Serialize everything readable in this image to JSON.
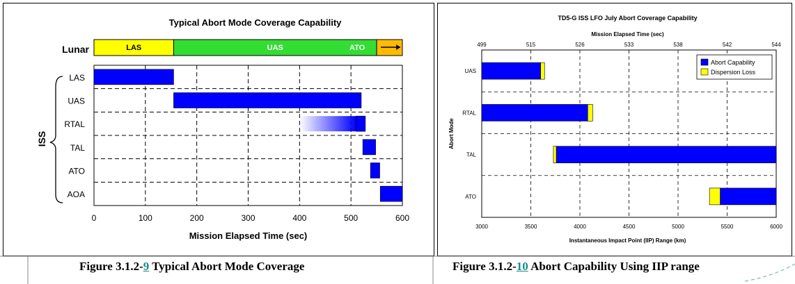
{
  "figures": {
    "left_caption": {
      "prefix": "Figure 3.1.2-",
      "number": "9",
      "text": " Typical Abort Mode Coverage"
    },
    "right_caption": {
      "prefix": "Figure 3.1.2-",
      "number": "10",
      "text": " Abort Capability Using IIP range"
    }
  },
  "chart_data": [
    {
      "type": "bar",
      "title": "Typical Abort Mode Coverage Capability",
      "xlabel": "Mission Elapsed Time (sec)",
      "xlim": [
        0,
        600
      ],
      "xticks": [
        0,
        100,
        200,
        300,
        400,
        500,
        600
      ],
      "lunar": {
        "label": "Lunar",
        "segments": [
          {
            "name": "LAS",
            "start": 0,
            "end": 155,
            "color": "#ffff00"
          },
          {
            "name": "UAS",
            "start": 155,
            "end": 550,
            "color": "#33dd33"
          },
          {
            "name": "ATO",
            "start": 550,
            "end": 600,
            "color": "#ffbb00"
          }
        ]
      },
      "group_label": "ISS",
      "bars": [
        {
          "mode": "LAS",
          "start": 0,
          "end": 155
        },
        {
          "mode": "UAS",
          "start": 155,
          "end": 520
        },
        {
          "mode": "RTAL",
          "start": 400,
          "end": 528,
          "gradient_from": 400,
          "solid_from": 510
        },
        {
          "mode": "TAL",
          "start": 523,
          "end": 548
        },
        {
          "mode": "ATO",
          "start": 538,
          "end": 556
        },
        {
          "mode": "AOA",
          "start": 557,
          "end": 600
        }
      ],
      "bar_color": "#0000ff"
    },
    {
      "type": "bar",
      "title": "TD5-G ISS LFO July Abort Coverage Capability",
      "top_axis_label": "Mission Elapsed Time (sec)",
      "top_ticks": [
        "499",
        "515",
        "526",
        "533",
        "538",
        "542",
        "544"
      ],
      "xlabel": "Instantaneous Impact Point (IIP) Range (km)",
      "ylabel": "Abort Mode",
      "xlim": [
        3000,
        6000
      ],
      "xticks": [
        3000,
        3500,
        4000,
        4500,
        5000,
        5500,
        6000
      ],
      "legend": {
        "position": "top-right",
        "items": [
          {
            "name": "Abort Capability",
            "color": "#0000ff"
          },
          {
            "name": "Dispersion Loss",
            "color": "#ffff00"
          }
        ]
      },
      "bars": [
        {
          "mode": "UAS",
          "abort_start": 3000,
          "abort_end": 3600,
          "loss_end": 3640
        },
        {
          "mode": "RTAL",
          "abort_start": 3000,
          "abort_end": 4080,
          "loss_end": 4130
        },
        {
          "mode": "TAL",
          "loss_start": 3730,
          "abort_start": 3760,
          "abort_end": 6000
        },
        {
          "mode": "ATO",
          "loss_start": 5320,
          "abort_start": 5430,
          "abort_end": 6000
        }
      ]
    }
  ]
}
